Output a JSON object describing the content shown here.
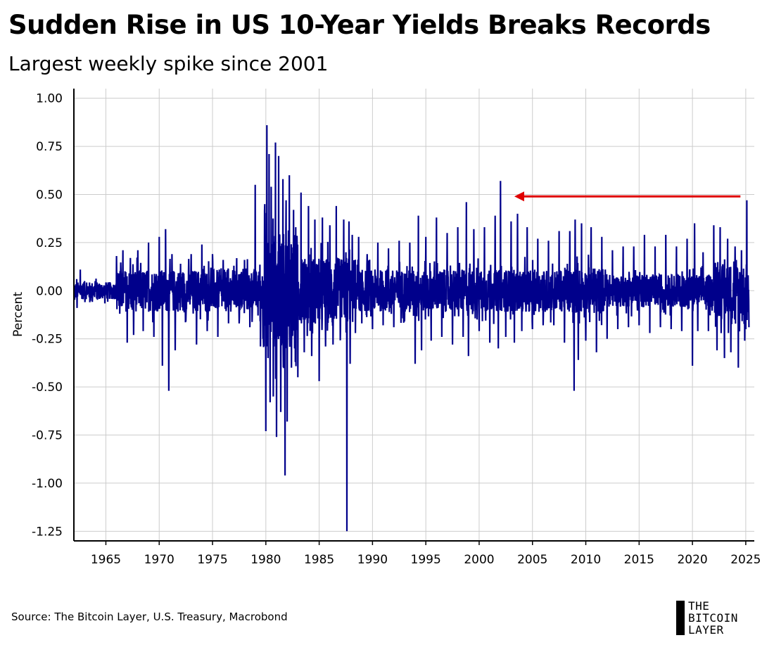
{
  "title": "Sudden Rise in US 10-Year Yields Breaks Records",
  "subtitle": "Largest weekly spike since 2001",
  "source": "Source: The Bitcoin Layer, U.S. Treasury, Macrobond",
  "logo": {
    "line1": "THE",
    "line2": "BITCOIN",
    "line3": "LAYER"
  },
  "colors": {
    "series": "#00008b",
    "arrow": "#e00000",
    "grid": "#cccccc",
    "axis": "#000000"
  },
  "chart_data": {
    "type": "line",
    "ylabel": "Percent",
    "xlabel": "",
    "xlim": [
      1962.0,
      2025.8
    ],
    "ylim": [
      -1.3,
      1.05
    ],
    "x_ticks": [
      1965,
      1970,
      1975,
      1980,
      1985,
      1990,
      1995,
      2000,
      2005,
      2010,
      2015,
      2020,
      2025
    ],
    "y_ticks": [
      1.0,
      0.75,
      0.5,
      0.25,
      0.0,
      -0.25,
      -0.5,
      -0.75,
      -1.0,
      -1.25
    ],
    "y_tick_labels": [
      "1.00",
      "0.75",
      "0.50",
      "0.25",
      "0.00",
      "-0.25",
      "-0.50",
      "-0.75",
      "-1.00",
      "-1.25"
    ],
    "grid": true,
    "series": [
      {
        "values_description_free": true,
        "x": [
          1962.0,
          1962.3,
          1962.6,
          1963.0,
          1963.5,
          1964.0,
          1964.5,
          1965.0,
          1965.5,
          1966.0,
          1966.3,
          1966.6,
          1967.0,
          1967.3,
          1967.6,
          1968.0,
          1968.5,
          1969.0,
          1969.5,
          1970.0,
          1970.3,
          1970.6,
          1970.9,
          1971.2,
          1971.5,
          1972.0,
          1972.5,
          1973.0,
          1973.5,
          1974.0,
          1974.5,
          1975.0,
          1975.5,
          1976.0,
          1976.5,
          1977.0,
          1977.5,
          1978.0,
          1978.5,
          1979.0,
          1979.5,
          1979.9,
          1980.0,
          1980.1,
          1980.2,
          1980.3,
          1980.4,
          1980.5,
          1980.7,
          1980.9,
          1981.0,
          1981.2,
          1981.4,
          1981.6,
          1981.8,
          1981.9,
          1982.0,
          1982.2,
          1982.4,
          1982.6,
          1982.7,
          1982.8,
          1983.0,
          1983.3,
          1983.6,
          1984.0,
          1984.3,
          1984.6,
          1985.0,
          1985.3,
          1985.6,
          1986.0,
          1986.3,
          1986.6,
          1987.0,
          1987.3,
          1987.6,
          1987.8,
          1987.9,
          1988.1,
          1988.4,
          1988.7,
          1989.0,
          1989.5,
          1990.0,
          1990.5,
          1991.0,
          1991.5,
          1992.0,
          1992.5,
          1993.0,
          1993.5,
          1994.0,
          1994.3,
          1994.6,
          1995.0,
          1995.5,
          1996.0,
          1996.5,
          1997.0,
          1997.5,
          1998.0,
          1998.5,
          1998.8,
          1999.0,
          1999.5,
          2000.0,
          2000.5,
          2001.0,
          2001.5,
          2001.8,
          2002.0,
          2002.5,
          2003.0,
          2003.3,
          2003.6,
          2004.0,
          2004.5,
          2005.0,
          2005.5,
          2006.0,
          2006.5,
          2007.0,
          2007.5,
          2008.0,
          2008.5,
          2008.9,
          2009.0,
          2009.3,
          2009.6,
          2010.0,
          2010.5,
          2011.0,
          2011.5,
          2012.0,
          2012.5,
          2013.0,
          2013.5,
          2014.0,
          2014.5,
          2015.0,
          2015.5,
          2016.0,
          2016.5,
          2017.0,
          2017.5,
          2018.0,
          2018.5,
          2019.0,
          2019.5,
          2020.0,
          2020.2,
          2020.5,
          2021.0,
          2021.5,
          2022.0,
          2022.3,
          2022.6,
          2023.0,
          2023.3,
          2023.6,
          2024.0,
          2024.3,
          2024.6,
          2024.9,
          2025.1,
          2025.3
        ],
        "y": [
          0.03,
          -0.09,
          0.11,
          0.05,
          -0.06,
          0.05,
          -0.03,
          0.04,
          -0.02,
          0.18,
          -0.12,
          0.21,
          -0.27,
          0.17,
          -0.23,
          0.21,
          -0.21,
          0.25,
          -0.24,
          0.28,
          -0.39,
          0.32,
          -0.52,
          0.19,
          -0.31,
          0.14,
          -0.16,
          0.19,
          -0.28,
          0.24,
          -0.21,
          0.19,
          -0.24,
          0.16,
          -0.17,
          0.13,
          -0.17,
          0.16,
          -0.19,
          0.55,
          -0.29,
          0.45,
          -0.73,
          0.86,
          -0.35,
          0.71,
          -0.58,
          0.54,
          -0.55,
          0.77,
          -0.76,
          0.7,
          -0.63,
          0.58,
          -0.96,
          0.47,
          -0.68,
          0.6,
          -0.4,
          0.42,
          -0.3,
          0.33,
          -0.45,
          0.51,
          -0.32,
          0.44,
          -0.34,
          0.37,
          -0.47,
          0.38,
          -0.29,
          0.34,
          -0.28,
          0.44,
          -0.18,
          0.37,
          -1.25,
          0.36,
          -0.38,
          0.29,
          -0.22,
          0.28,
          -0.17,
          0.19,
          -0.2,
          0.25,
          -0.18,
          0.22,
          -0.19,
          0.26,
          -0.16,
          0.25,
          -0.38,
          0.39,
          -0.31,
          0.28,
          -0.26,
          0.38,
          -0.24,
          0.3,
          -0.28,
          0.33,
          -0.24,
          0.46,
          -0.34,
          0.32,
          -0.21,
          0.33,
          -0.27,
          0.39,
          -0.3,
          0.57,
          -0.24,
          0.36,
          -0.27,
          0.4,
          -0.21,
          0.33,
          -0.2,
          0.27,
          -0.18,
          0.26,
          -0.18,
          0.31,
          -0.27,
          0.31,
          -0.52,
          0.37,
          -0.36,
          0.35,
          -0.26,
          0.33,
          -0.32,
          0.28,
          -0.25,
          0.21,
          -0.2,
          0.23,
          -0.19,
          0.23,
          -0.18,
          0.29,
          -0.22,
          0.23,
          -0.19,
          0.29,
          -0.2,
          0.23,
          -0.21,
          0.27,
          -0.39,
          0.35,
          -0.21,
          0.2,
          -0.21,
          0.34,
          -0.31,
          0.33,
          -0.35,
          0.27,
          -0.32,
          0.23,
          -0.4,
          0.21,
          -0.26,
          0.47,
          -0.19
        ]
      }
    ],
    "annotations": [
      {
        "type": "arrow",
        "from": {
          "x": 2024.5,
          "y": 0.49
        },
        "to": {
          "x": 2003.3,
          "y": 0.49
        }
      }
    ]
  }
}
